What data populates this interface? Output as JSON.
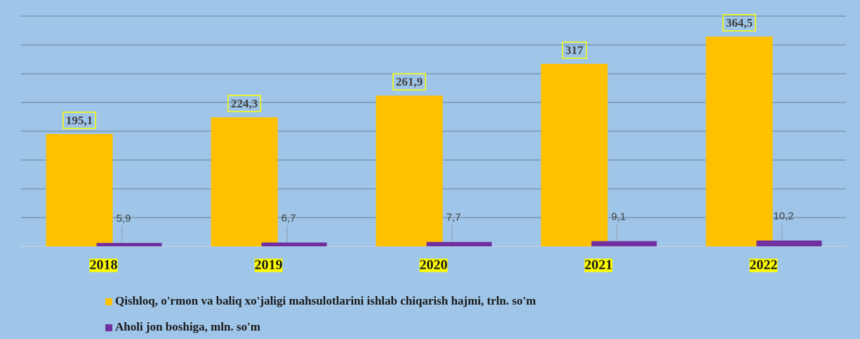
{
  "chart_data": {
    "type": "bar",
    "categories": [
      "2018",
      "2019",
      "2020",
      "2021",
      "2022"
    ],
    "series": [
      {
        "name": "Qishloq, o'rmon va baliq xo'jaligi mahsulotlarini ishlab chiqarish hajmi, trln. so'm",
        "color": "#ffc000",
        "values": [
          195.1,
          224.3,
          261.9,
          317,
          364.5
        ],
        "value_labels": [
          "195,1",
          "224,3",
          "261,9",
          "317",
          "364,5"
        ]
      },
      {
        "name": "Aholi jon boshiga, mln. so'm",
        "color": "#7030a0",
        "values": [
          5.9,
          6.7,
          7.7,
          9.1,
          10.2
        ],
        "value_labels": [
          "5,9",
          "6,7",
          "7,7",
          "9,1",
          "10,2"
        ]
      }
    ],
    "ylim": [
      0,
      400
    ],
    "yticks": [
      0,
      50,
      100,
      150,
      200,
      250,
      300,
      350,
      400
    ],
    "grid": true
  }
}
